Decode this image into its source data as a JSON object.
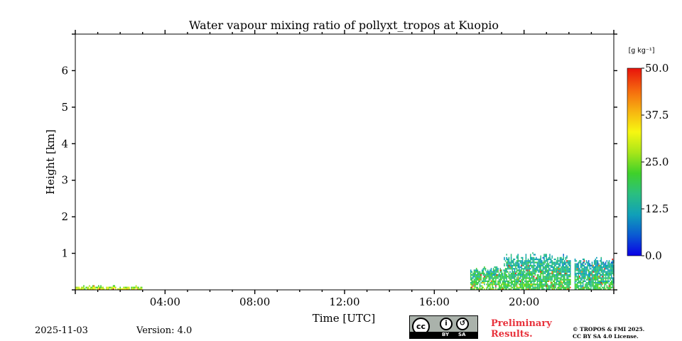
{
  "chart_data": {
    "type": "heatmap",
    "title": "Water vapour mixing ratio of pollyxt_tropos at Kuopio",
    "xlabel": "Time [UTC]",
    "ylabel": "Height [km]",
    "xlim_hours": [
      0,
      24
    ],
    "ylim_km": [
      0,
      7
    ],
    "x_ticks": [
      {
        "hour": 4,
        "label": "04:00"
      },
      {
        "hour": 8,
        "label": "08:00"
      },
      {
        "hour": 12,
        "label": "12:00"
      },
      {
        "hour": 16,
        "label": "16:00"
      },
      {
        "hour": 20,
        "label": "20:00"
      }
    ],
    "y_ticks": [
      {
        "km": 1,
        "label": "1"
      },
      {
        "km": 2,
        "label": "2"
      },
      {
        "km": 3,
        "label": "3"
      },
      {
        "km": 4,
        "label": "4"
      },
      {
        "km": 5,
        "label": "5"
      },
      {
        "km": 6,
        "label": "6"
      }
    ],
    "colorbar": {
      "label": "[g kg⁻¹]",
      "range": [
        0,
        50
      ],
      "ticks": [
        {
          "value": 50.0,
          "label": "50.0"
        },
        {
          "value": 37.5,
          "label": "37.5"
        },
        {
          "value": 25.0,
          "label": "25.0"
        },
        {
          "value": 12.5,
          "label": "12.5"
        },
        {
          "value": 0.0,
          "label": "0.0"
        }
      ],
      "colormap": [
        "#0a00e6",
        "#0a5ad2",
        "#10a0b8",
        "#2bbf80",
        "#3fd12a",
        "#a8e619",
        "#f7f711",
        "#f7b411",
        "#f56a0e",
        "#e8130c"
      ]
    },
    "data_regions": [
      {
        "name": "early-layer",
        "t_start": 0.0,
        "t_end": 2.95,
        "h_top_km": 0.12,
        "typical_value": 24
      },
      {
        "name": "evening-block-1",
        "t_start": 17.6,
        "t_end": 19.1,
        "h_top_km": 0.6,
        "typical_value": 16
      },
      {
        "name": "evening-block-2",
        "t_start": 19.1,
        "t_end": 22.05,
        "h_top_km": 0.92,
        "typical_value": 14
      },
      {
        "name": "evening-block-3",
        "t_start": 22.25,
        "t_end": 24.0,
        "h_top_km": 0.82,
        "typical_value": 13
      }
    ]
  },
  "footer": {
    "date": "2025-11-03",
    "version": "Version: 4.0",
    "license_badge": {
      "cc": "cc",
      "by": "BY",
      "sa": "SA"
    },
    "preliminary_line1": "Preliminary",
    "preliminary_line2": "Results.",
    "copyright_line1": "© TROPOS & FMI 2025.",
    "copyright_line2": "CC BY SA 4.0 License."
  },
  "colors": {
    "preliminary": "#e8323c"
  }
}
